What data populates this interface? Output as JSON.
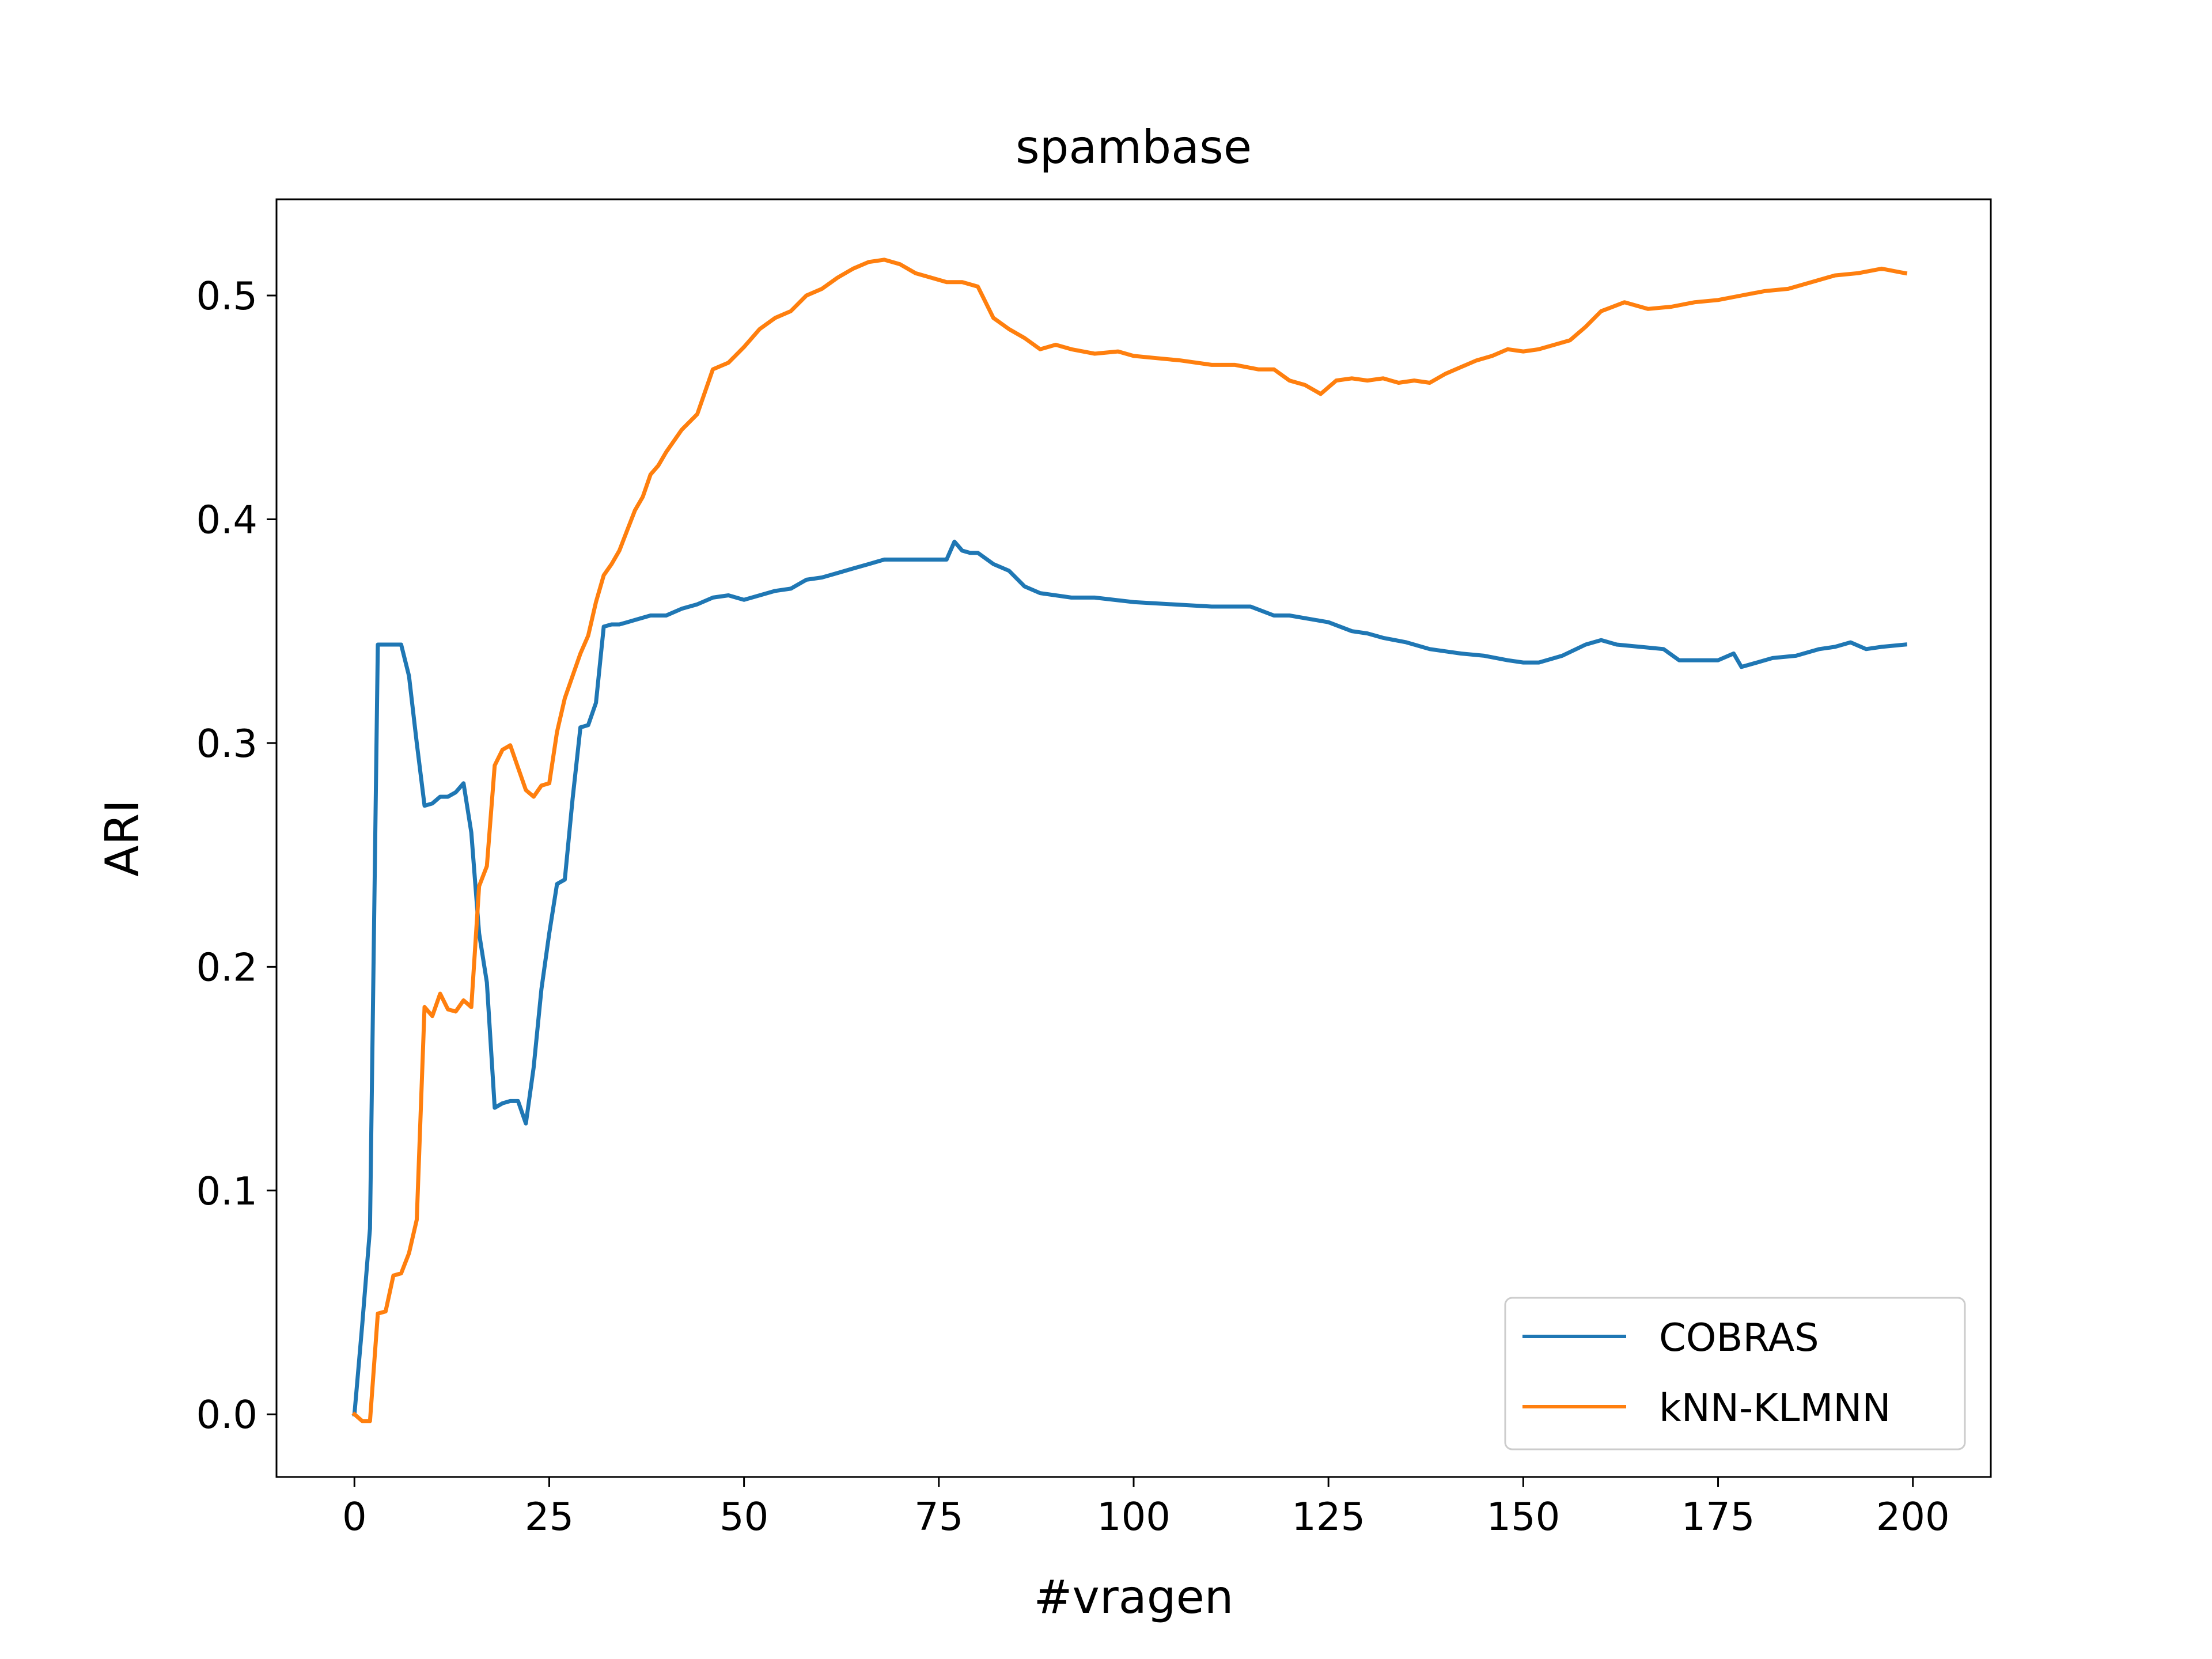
{
  "chart_data": {
    "type": "line",
    "title": "spambase",
    "xlabel": "#vragen",
    "ylabel": "ARI",
    "xlim": [
      -10,
      210
    ],
    "ylim": [
      -0.028,
      0.543
    ],
    "xticks": [
      0,
      25,
      50,
      75,
      100,
      125,
      150,
      175,
      200
    ],
    "xtick_labels": [
      "0",
      "25",
      "50",
      "75",
      "100",
      "125",
      "150",
      "175",
      "200"
    ],
    "yticks": [
      0.0,
      0.1,
      0.2,
      0.3,
      0.4,
      0.5
    ],
    "ytick_labels": [
      "0.0",
      "0.1",
      "0.2",
      "0.3",
      "0.4",
      "0.5"
    ],
    "grid": false,
    "legend_position": "lower-right",
    "series": [
      {
        "name": "COBRAS",
        "color": "#1f77b4",
        "x": [
          0,
          1,
          2,
          3,
          4,
          5,
          6,
          7,
          8,
          9,
          10,
          11,
          12,
          13,
          14,
          15,
          16,
          17,
          18,
          19,
          20,
          21,
          22,
          23,
          24,
          25,
          26,
          27,
          28,
          29,
          30,
          31,
          32,
          33,
          34,
          35,
          36,
          38,
          40,
          42,
          44,
          46,
          48,
          50,
          52,
          54,
          56,
          58,
          60,
          62,
          64,
          66,
          68,
          70,
          72,
          74,
          76,
          77,
          78,
          79,
          80,
          82,
          84,
          86,
          88,
          90,
          92,
          95,
          100,
          105,
          110,
          115,
          118,
          120,
          125,
          128,
          130,
          132,
          135,
          138,
          140,
          142,
          145,
          148,
          150,
          152,
          155,
          158,
          160,
          162,
          165,
          168,
          170,
          172,
          175,
          177,
          178,
          180,
          182,
          185,
          188,
          190,
          192,
          194,
          196,
          199
        ],
        "values": [
          0.0,
          0.04,
          0.083,
          0.344,
          0.344,
          0.344,
          0.344,
          0.33,
          0.3,
          0.272,
          0.273,
          0.276,
          0.276,
          0.278,
          0.282,
          0.26,
          0.215,
          0.193,
          0.137,
          0.139,
          0.14,
          0.14,
          0.13,
          0.155,
          0.19,
          0.215,
          0.237,
          0.239,
          0.275,
          0.307,
          0.308,
          0.318,
          0.352,
          0.353,
          0.353,
          0.354,
          0.355,
          0.357,
          0.357,
          0.36,
          0.362,
          0.365,
          0.366,
          0.364,
          0.366,
          0.368,
          0.369,
          0.373,
          0.374,
          0.376,
          0.378,
          0.38,
          0.382,
          0.382,
          0.382,
          0.382,
          0.382,
          0.39,
          0.386,
          0.385,
          0.385,
          0.38,
          0.377,
          0.37,
          0.367,
          0.366,
          0.365,
          0.365,
          0.363,
          0.362,
          0.361,
          0.361,
          0.357,
          0.357,
          0.354,
          0.35,
          0.349,
          0.347,
          0.345,
          0.342,
          0.341,
          0.34,
          0.339,
          0.337,
          0.336,
          0.336,
          0.339,
          0.344,
          0.346,
          0.344,
          0.343,
          0.342,
          0.337,
          0.337,
          0.337,
          0.34,
          0.334,
          0.336,
          0.338,
          0.339,
          0.342,
          0.343,
          0.345,
          0.342,
          0.343,
          0.344
        ]
      },
      {
        "name": "kNN-KLMNN",
        "color": "#ff7f0e",
        "x": [
          0,
          1,
          2,
          3,
          4,
          5,
          6,
          7,
          8,
          9,
          10,
          11,
          12,
          13,
          14,
          15,
          16,
          17,
          18,
          19,
          20,
          21,
          22,
          23,
          24,
          25,
          26,
          27,
          28,
          29,
          30,
          31,
          32,
          33,
          34,
          35,
          36,
          37,
          38,
          39,
          40,
          42,
          44,
          46,
          48,
          50,
          52,
          54,
          56,
          58,
          60,
          62,
          64,
          66,
          68,
          70,
          72,
          74,
          76,
          78,
          80,
          82,
          84,
          86,
          88,
          90,
          92,
          95,
          98,
          100,
          103,
          106,
          110,
          113,
          116,
          118,
          120,
          122,
          124,
          126,
          128,
          130,
          132,
          134,
          136,
          138,
          140,
          142,
          144,
          146,
          148,
          150,
          152,
          154,
          156,
          158,
          160,
          163,
          166,
          169,
          172,
          175,
          178,
          181,
          184,
          187,
          190,
          193,
          196,
          199
        ],
        "values": [
          0.0,
          -0.003,
          -0.003,
          0.045,
          0.046,
          0.062,
          0.063,
          0.072,
          0.087,
          0.182,
          0.178,
          0.188,
          0.181,
          0.18,
          0.185,
          0.182,
          0.236,
          0.245,
          0.29,
          0.297,
          0.299,
          0.289,
          0.279,
          0.276,
          0.281,
          0.282,
          0.305,
          0.32,
          0.33,
          0.34,
          0.348,
          0.363,
          0.375,
          0.38,
          0.386,
          0.395,
          0.404,
          0.41,
          0.42,
          0.424,
          0.43,
          0.44,
          0.447,
          0.467,
          0.47,
          0.477,
          0.485,
          0.49,
          0.493,
          0.5,
          0.503,
          0.508,
          0.512,
          0.515,
          0.516,
          0.514,
          0.51,
          0.508,
          0.506,
          0.506,
          0.504,
          0.49,
          0.485,
          0.481,
          0.476,
          0.478,
          0.476,
          0.474,
          0.475,
          0.473,
          0.472,
          0.471,
          0.469,
          0.469,
          0.467,
          0.467,
          0.462,
          0.46,
          0.456,
          0.462,
          0.463,
          0.462,
          0.463,
          0.461,
          0.462,
          0.461,
          0.465,
          0.468,
          0.471,
          0.473,
          0.476,
          0.475,
          0.476,
          0.478,
          0.48,
          0.486,
          0.493,
          0.497,
          0.494,
          0.495,
          0.497,
          0.498,
          0.5,
          0.502,
          0.503,
          0.506,
          0.509,
          0.51,
          0.512,
          0.51
        ]
      }
    ]
  }
}
